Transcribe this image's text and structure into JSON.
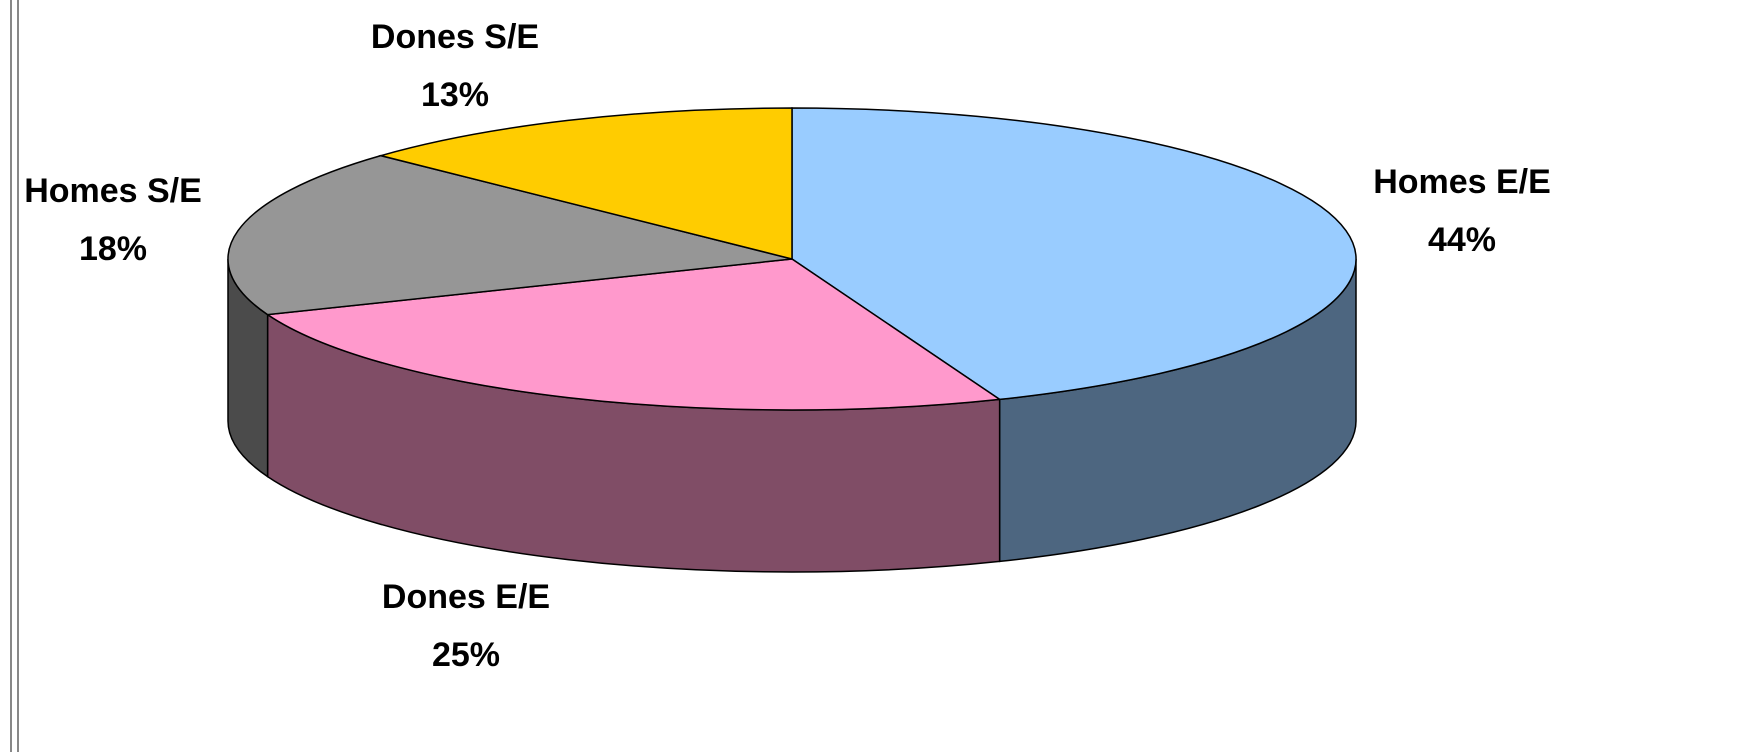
{
  "chart_data": {
    "type": "pie3d",
    "categories": [
      "Homes E/E",
      "Dones E/E",
      "Homes S/E",
      "Dones S/E"
    ],
    "values": [
      44,
      25,
      18,
      13
    ],
    "value_labels": [
      "44%",
      "25%",
      "18%",
      "13%"
    ],
    "colors": [
      "#99ccff",
      "#ff99cc",
      "#969696",
      "#ffcc00"
    ]
  }
}
